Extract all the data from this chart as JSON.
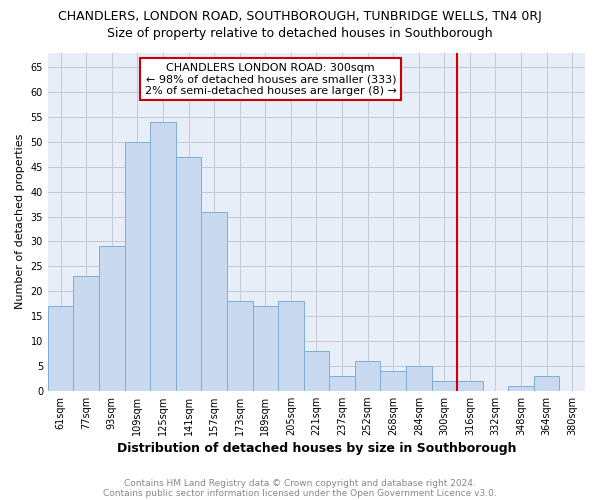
{
  "title": "CHANDLERS, LONDON ROAD, SOUTHBOROUGH, TUNBRIDGE WELLS, TN4 0RJ",
  "subtitle": "Size of property relative to detached houses in Southborough",
  "xlabel": "Distribution of detached houses by size in Southborough",
  "ylabel": "Number of detached properties",
  "bar_labels": [
    "61sqm",
    "77sqm",
    "93sqm",
    "109sqm",
    "125sqm",
    "141sqm",
    "157sqm",
    "173sqm",
    "189sqm",
    "205sqm",
    "221sqm",
    "237sqm",
    "252sqm",
    "268sqm",
    "284sqm",
    "300sqm",
    "316sqm",
    "332sqm",
    "348sqm",
    "364sqm",
    "380sqm"
  ],
  "bar_values": [
    17,
    23,
    29,
    50,
    54,
    47,
    36,
    18,
    17,
    18,
    8,
    3,
    6,
    4,
    5,
    2,
    2,
    0,
    1,
    3,
    0
  ],
  "bar_color": "#c9d9f0",
  "bar_edgecolor": "#7aafd4",
  "vline_x_idx": 15,
  "vline_color": "#cc0000",
  "annotation_title": "CHANDLERS LONDON ROAD: 300sqm",
  "annotation_line1": "← 98% of detached houses are smaller (333)",
  "annotation_line2": "2% of semi-detached houses are larger (8) →",
  "annotation_box_edgecolor": "#cc0000",
  "ylim": [
    0,
    68
  ],
  "yticks": [
    0,
    5,
    10,
    15,
    20,
    25,
    30,
    35,
    40,
    45,
    50,
    55,
    60,
    65
  ],
  "plot_bg_color": "#e8eef8",
  "background_color": "#ffffff",
  "grid_color": "#c0c8d8",
  "footer1": "Contains HM Land Registry data © Crown copyright and database right 2024.",
  "footer2": "Contains public sector information licensed under the Open Government Licence v3.0.",
  "title_fontsize": 9,
  "subtitle_fontsize": 9,
  "xlabel_fontsize": 9,
  "ylabel_fontsize": 8,
  "tick_fontsize": 7,
  "annot_fontsize": 8,
  "footer_fontsize": 6.5
}
